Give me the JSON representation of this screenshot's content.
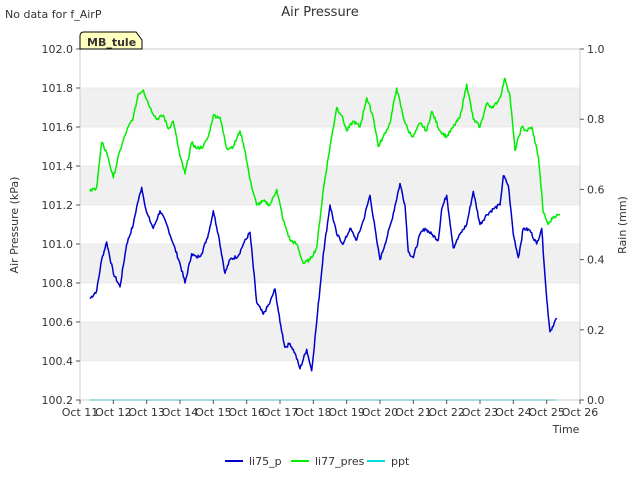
{
  "chart_data": {
    "type": "line",
    "title": "Air Pressure",
    "note": "No data for f_AirP",
    "station_badge": "MB_tule",
    "xlabel": "Time",
    "ylabel": "Air Pressure (kPa)",
    "y2label": "Rain (mm)",
    "ylim": [
      100.2,
      102.0
    ],
    "y2lim": [
      0.0,
      1.0
    ],
    "xlim_days": [
      11,
      26
    ],
    "x_ticks": [
      "Oct 11",
      "Oct 12",
      "Oct 13",
      "Oct 14",
      "Oct 15",
      "Oct 16",
      "Oct 17",
      "Oct 18",
      "Oct 19",
      "Oct 20",
      "Oct 21",
      "Oct 22",
      "Oct 23",
      "Oct 24",
      "Oct 25",
      "Oct 26"
    ],
    "y_ticks": [
      "100.2",
      "100.4",
      "100.6",
      "100.8",
      "101.0",
      "101.2",
      "101.4",
      "101.6",
      "101.8",
      "102.0"
    ],
    "y2_ticks": [
      "0.0",
      "0.2",
      "0.4",
      "0.6",
      "0.8",
      "1.0"
    ],
    "grid_bands": true,
    "legend_position": "bottom-center",
    "series": [
      {
        "name": "li75_p",
        "color": "#0000cc",
        "axis": "left",
        "x": [
          11.3,
          11.5,
          11.65,
          11.8,
          12.0,
          12.2,
          12.4,
          12.6,
          12.7,
          12.85,
          13.0,
          13.2,
          13.4,
          13.6,
          13.8,
          14.0,
          14.15,
          14.35,
          14.5,
          14.65,
          14.85,
          15.0,
          15.15,
          15.35,
          15.5,
          15.75,
          15.9,
          16.1,
          16.3,
          16.5,
          16.7,
          16.85,
          17.0,
          17.15,
          17.3,
          17.45,
          17.6,
          17.8,
          17.95,
          18.1,
          18.3,
          18.5,
          18.7,
          18.9,
          19.1,
          19.3,
          19.5,
          19.7,
          19.9,
          20.0,
          20.15,
          20.35,
          20.6,
          20.75,
          20.85,
          21.0,
          21.2,
          21.35,
          21.55,
          21.75,
          21.85,
          22.0,
          22.2,
          22.4,
          22.6,
          22.8,
          23.0,
          23.2,
          23.4,
          23.6,
          23.7,
          23.85,
          24.0,
          24.15,
          24.3,
          24.5,
          24.7,
          24.85,
          25.0,
          25.1,
          25.3
        ],
        "values": [
          100.72,
          100.76,
          100.92,
          101.01,
          100.85,
          100.78,
          101.0,
          101.1,
          101.19,
          101.29,
          101.16,
          101.08,
          101.17,
          101.1,
          101.0,
          100.9,
          100.8,
          100.95,
          100.93,
          100.95,
          101.05,
          101.17,
          101.05,
          100.85,
          100.92,
          100.94,
          101.0,
          101.06,
          100.7,
          100.64,
          100.7,
          100.77,
          100.6,
          100.47,
          100.49,
          100.44,
          100.36,
          100.46,
          100.35,
          100.6,
          100.95,
          101.2,
          101.05,
          101.0,
          101.08,
          101.02,
          101.12,
          101.25,
          101.02,
          100.92,
          101.0,
          101.12,
          101.31,
          101.2,
          100.96,
          100.93,
          101.05,
          101.08,
          101.05,
          101.02,
          101.18,
          101.25,
          100.98,
          101.05,
          101.1,
          101.27,
          101.1,
          101.15,
          101.18,
          101.2,
          101.35,
          101.3,
          101.05,
          100.93,
          101.08,
          101.07,
          101.0,
          101.08,
          100.72,
          100.55,
          100.62
        ]
      },
      {
        "name": "li77_pres",
        "color": "#00ee00",
        "axis": "left",
        "x": [
          11.3,
          11.5,
          11.65,
          11.8,
          12.0,
          12.2,
          12.4,
          12.6,
          12.75,
          12.9,
          13.1,
          13.3,
          13.5,
          13.65,
          13.8,
          14.0,
          14.15,
          14.35,
          14.5,
          14.7,
          14.85,
          15.0,
          15.2,
          15.4,
          15.6,
          15.8,
          15.95,
          16.1,
          16.3,
          16.5,
          16.7,
          16.9,
          17.1,
          17.3,
          17.5,
          17.7,
          17.9,
          18.1,
          18.3,
          18.5,
          18.7,
          18.85,
          19.0,
          19.2,
          19.4,
          19.6,
          19.8,
          19.95,
          20.1,
          20.3,
          20.5,
          20.7,
          20.85,
          21.0,
          21.2,
          21.4,
          21.55,
          21.8,
          22.0,
          22.2,
          22.4,
          22.6,
          22.8,
          23.0,
          23.2,
          23.4,
          23.6,
          23.75,
          23.9,
          24.05,
          24.25,
          24.4,
          24.55,
          24.75,
          24.9,
          25.05,
          25.2,
          25.4
        ],
        "values": [
          101.27,
          101.29,
          101.52,
          101.47,
          101.34,
          101.48,
          101.58,
          101.65,
          101.77,
          101.79,
          101.7,
          101.64,
          101.66,
          101.59,
          101.63,
          101.45,
          101.36,
          101.52,
          101.49,
          101.5,
          101.55,
          101.66,
          101.65,
          101.49,
          101.5,
          101.58,
          101.48,
          101.33,
          101.2,
          101.22,
          101.2,
          101.28,
          101.12,
          101.02,
          101.0,
          100.9,
          100.92,
          100.98,
          101.28,
          101.5,
          101.7,
          101.66,
          101.58,
          101.63,
          101.6,
          101.75,
          101.65,
          101.5,
          101.55,
          101.62,
          101.8,
          101.65,
          101.58,
          101.55,
          101.62,
          101.58,
          101.68,
          101.58,
          101.55,
          101.6,
          101.65,
          101.82,
          101.64,
          101.6,
          101.72,
          101.7,
          101.75,
          101.85,
          101.76,
          101.48,
          101.6,
          101.58,
          101.6,
          101.45,
          101.16,
          101.1,
          101.14,
          101.15
        ]
      },
      {
        "name": "ppt",
        "color": "#00dddd",
        "axis": "right",
        "x": [
          11.3,
          25.3
        ],
        "values": [
          0.0,
          0.0
        ]
      }
    ]
  }
}
